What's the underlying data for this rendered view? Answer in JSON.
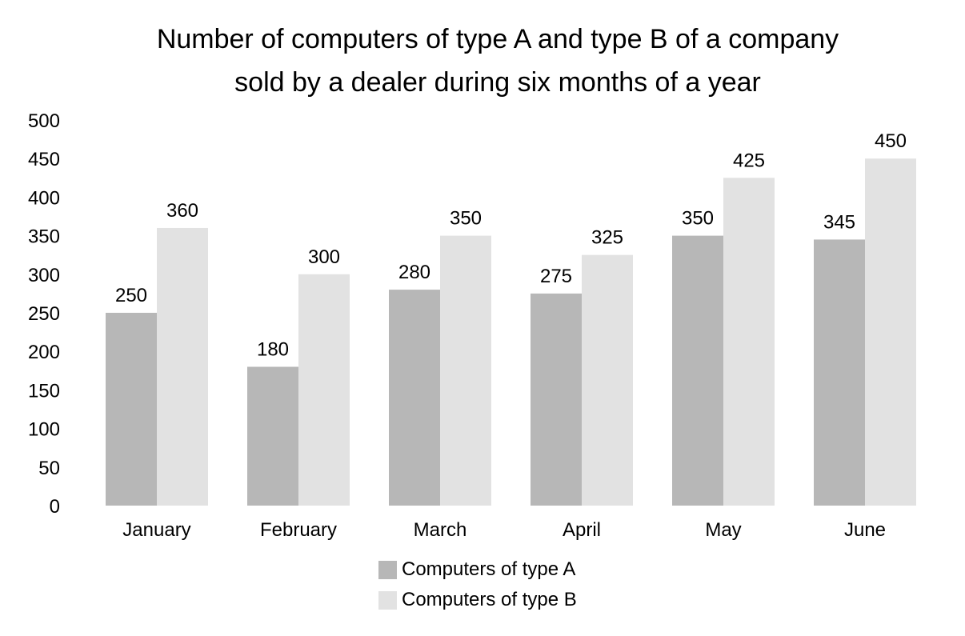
{
  "chart_data": {
    "type": "bar",
    "title_lines": [
      "Number of computers of type A and type B of a company",
      "sold by a dealer during six months of a year"
    ],
    "xlabel": "",
    "ylabel": "",
    "categories": [
      "January",
      "February",
      "March",
      "April",
      "May",
      "June"
    ],
    "series": [
      {
        "name": "Computers of type A",
        "color": "#b7b7b7",
        "values": [
          250,
          180,
          280,
          275,
          350,
          345
        ]
      },
      {
        "name": "Computers of type B",
        "color": "#e2e2e2",
        "values": [
          360,
          300,
          350,
          325,
          425,
          450
        ]
      }
    ],
    "ylim": [
      0,
      500
    ],
    "yticks": [
      0,
      50,
      100,
      150,
      200,
      250,
      300,
      350,
      400,
      450,
      500
    ],
    "grid": false,
    "legend_position": "bottom",
    "data_labels": true
  }
}
